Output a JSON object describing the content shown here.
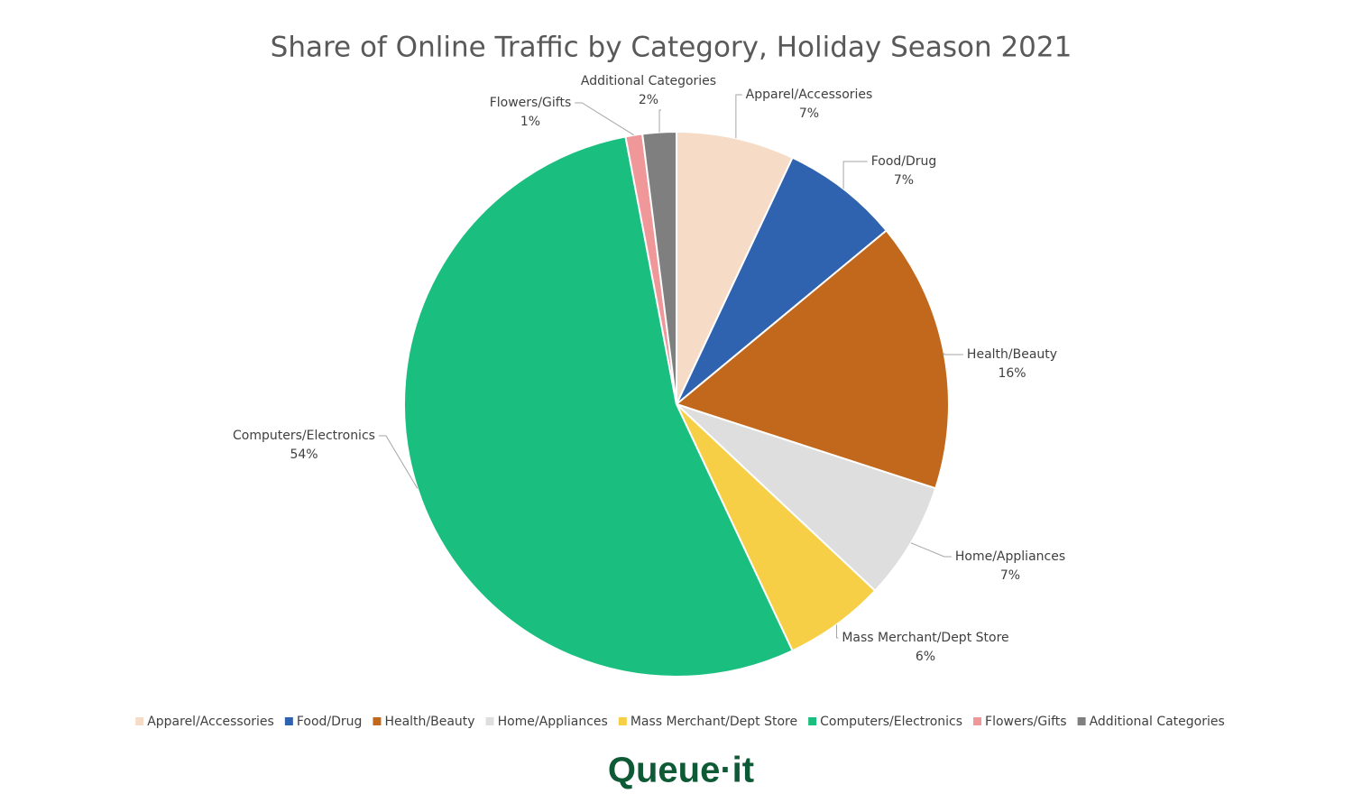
{
  "chart_data": {
    "type": "pie",
    "title": "Share of Online Traffic by Category, Holiday Season 2021",
    "categories": [
      "Apparel/Accessories",
      "Food/Drug",
      "Health/Beauty",
      "Home/Appliances",
      "Mass Merchant/Dept Store",
      "Computers/Electronics",
      "Flowers/Gifts",
      "Additional Categories"
    ],
    "values": [
      7,
      7,
      16,
      7,
      6,
      54,
      1,
      2
    ],
    "value_labels": [
      "7%",
      "7%",
      "16%",
      "7%",
      "6%",
      "54%",
      "1%",
      "2%"
    ],
    "colors": [
      "#f6dcc6",
      "#2f63b0",
      "#c2681c",
      "#dedede",
      "#f7cf46",
      "#1abf80",
      "#f0979a",
      "#7f7f7f"
    ],
    "legend": "bottom"
  },
  "logo": "Queue·it"
}
